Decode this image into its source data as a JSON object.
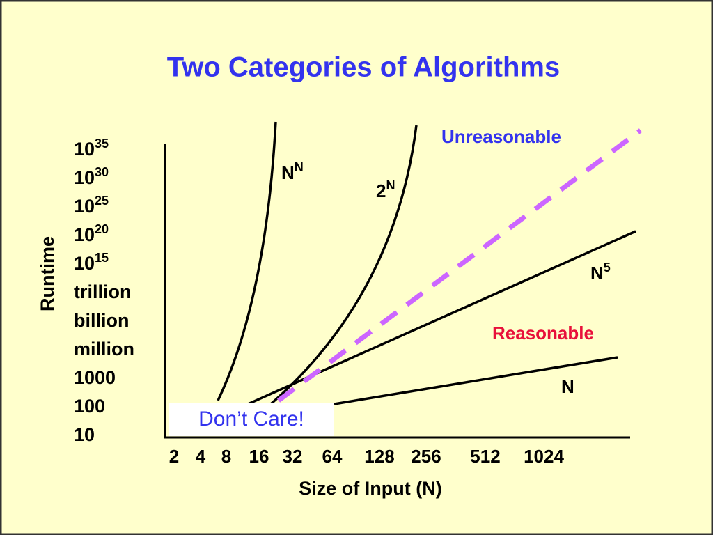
{
  "title": "Two Categories of Algorithms",
  "y_axis": {
    "label": "Runtime",
    "ticks": [
      {
        "base": "10",
        "exp": "35"
      },
      {
        "base": "10",
        "exp": "30"
      },
      {
        "base": "10",
        "exp": "25"
      },
      {
        "base": "10",
        "exp": "20"
      },
      {
        "base": "10",
        "exp": "15"
      },
      {
        "base": "trillion"
      },
      {
        "base": "billion"
      },
      {
        "base": "million"
      },
      {
        "base": "1000"
      },
      {
        "base": "100"
      },
      {
        "base": "10"
      }
    ]
  },
  "x_axis": {
    "label": "Size of Input (N)",
    "ticks": [
      "2",
      "4",
      "8",
      "16",
      "32",
      "64",
      "128",
      "256",
      "512",
      "1024"
    ]
  },
  "curves": [
    {
      "base": "N",
      "exp": "N"
    },
    {
      "base": "2",
      "exp": "N"
    },
    {
      "base": "N",
      "exp": "5"
    },
    {
      "base": "N"
    }
  ],
  "regions": {
    "unreasonable": "Unreasonable",
    "reasonable": "Reasonable",
    "dont_care": "Don’t Care!"
  }
}
